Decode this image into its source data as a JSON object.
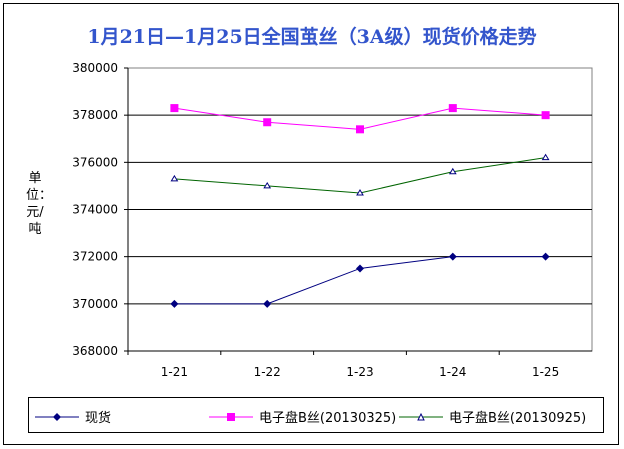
{
  "chart_data": {
    "type": "line",
    "title": "1月21日—1月25日全国茧丝（3A级）现货价格走势",
    "ylabel": "单位：元/吨",
    "categories": [
      "1-21",
      "1-22",
      "1-23",
      "1-24",
      "1-25"
    ],
    "ylim": [
      368000,
      380000
    ],
    "yticks": [
      "368000",
      "370000",
      "372000",
      "374000",
      "376000",
      "378000",
      "380000"
    ],
    "grid": "horizontal",
    "legend": "bottom",
    "series": [
      {
        "name": "现货",
        "values": [
          370000,
          370000,
          371500,
          372000,
          372000
        ],
        "color": "#000080",
        "marker": "diamond"
      },
      {
        "name": "电子盘B丝(20130325)",
        "values": [
          378300,
          377700,
          377400,
          378300,
          378000
        ],
        "color": "#ff00ff",
        "marker": "square"
      },
      {
        "name": "电子盘B丝(20130925)",
        "values": [
          375300,
          375000,
          374700,
          375600,
          376200
        ],
        "color": "#006400",
        "marker": "triangle"
      }
    ]
  }
}
